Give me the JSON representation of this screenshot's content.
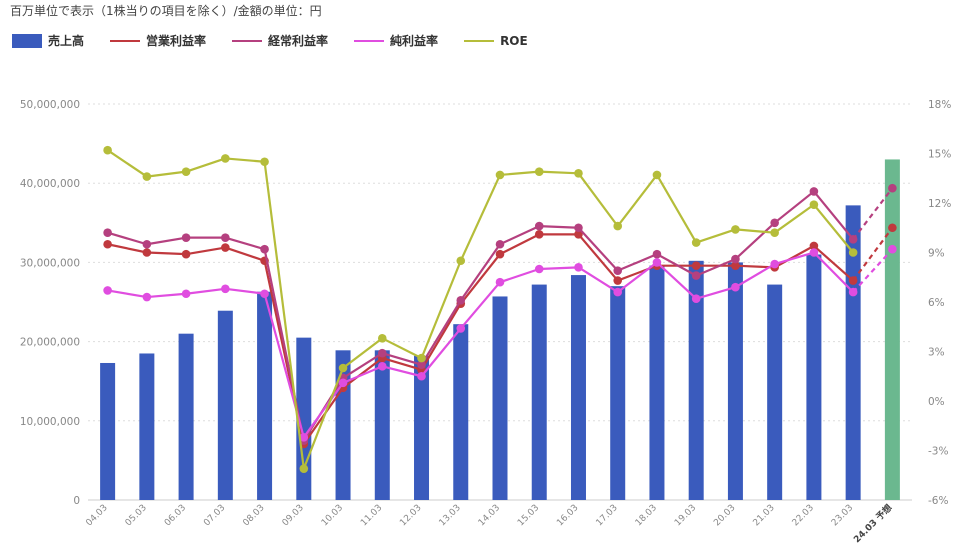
{
  "note": "百万単位で表示（1株当りの項目を除く）/金額の単位：円",
  "legend": [
    {
      "label": "売上高",
      "kind": "bar",
      "color": "#3a5bbd"
    },
    {
      "label": "営業利益率",
      "kind": "line",
      "color": "#c0393e"
    },
    {
      "label": "経常利益率",
      "kind": "line",
      "color": "#b5407f"
    },
    {
      "label": "純利益率",
      "kind": "line",
      "color": "#e04de0"
    },
    {
      "label": "ROE",
      "kind": "line",
      "color": "#b5bd3a"
    }
  ],
  "chart_data": {
    "type": "bar",
    "categories": [
      "04.03",
      "05.03",
      "06.03",
      "07.03",
      "08.03",
      "09.03",
      "10.03",
      "11.03",
      "12.03",
      "13.03",
      "14.03",
      "15.03",
      "16.03",
      "17.03",
      "18.03",
      "19.03",
      "20.03",
      "21.03",
      "22.03",
      "23.03",
      "24.03 予想"
    ],
    "forecast_index": 20,
    "bar_colors": {
      "actual": "#3a5bbd",
      "forecast": "#6bb88f"
    },
    "left_axis": {
      "min": 0,
      "max": 50000000,
      "ticks": [
        "0",
        "10,000,000",
        "20,000,000",
        "30,000,000",
        "40,000,000",
        "50,000,000"
      ]
    },
    "right_axis": {
      "min": -6,
      "max": 18,
      "ticks": [
        "-6%",
        "-3%",
        "0%",
        "3%",
        "6%",
        "9%",
        "12%",
        "15%",
        "18%"
      ]
    },
    "series": [
      {
        "name": "売上高",
        "axis": "left",
        "color": "#3a5bbd",
        "values": [
          17300000,
          18500000,
          21000000,
          23900000,
          26300000,
          20500000,
          18900000,
          18900000,
          18200000,
          22200000,
          25700000,
          27200000,
          28400000,
          27000000,
          29600000,
          30200000,
          30000000,
          27200000,
          31000000,
          37200000,
          43000000
        ]
      },
      {
        "name": "営業利益率",
        "axis": "right",
        "color": "#c0393e",
        "values": [
          9.5,
          9.0,
          8.9,
          9.3,
          8.5,
          -2.6,
          0.8,
          2.6,
          1.9,
          5.9,
          8.9,
          10.1,
          10.1,
          7.3,
          8.2,
          8.2,
          8.2,
          8.1,
          9.4,
          7.3,
          10.5
        ]
      },
      {
        "name": "経常利益率",
        "axis": "right",
        "color": "#b5407f",
        "values": [
          10.2,
          9.5,
          9.9,
          9.9,
          9.2,
          -2.4,
          1.4,
          2.9,
          2.2,
          6.1,
          9.5,
          10.6,
          10.5,
          7.9,
          8.9,
          7.6,
          8.6,
          10.8,
          12.7,
          9.8,
          12.9
        ]
      },
      {
        "name": "純利益率",
        "axis": "right",
        "color": "#e04de0",
        "values": [
          6.7,
          6.3,
          6.5,
          6.8,
          6.5,
          -2.2,
          1.1,
          2.1,
          1.5,
          4.4,
          7.2,
          8.0,
          8.1,
          6.6,
          8.4,
          6.2,
          6.9,
          8.3,
          9.0,
          6.6,
          9.2
        ]
      },
      {
        "name": "ROE",
        "axis": "right",
        "color": "#b5bd3a",
        "values": [
          15.2,
          13.6,
          13.9,
          14.7,
          14.5,
          -4.1,
          2.0,
          3.8,
          2.6,
          8.5,
          13.7,
          13.9,
          13.8,
          10.6,
          13.7,
          9.6,
          10.4,
          10.2,
          11.9,
          9.0,
          null
        ]
      }
    ],
    "grid": true
  }
}
